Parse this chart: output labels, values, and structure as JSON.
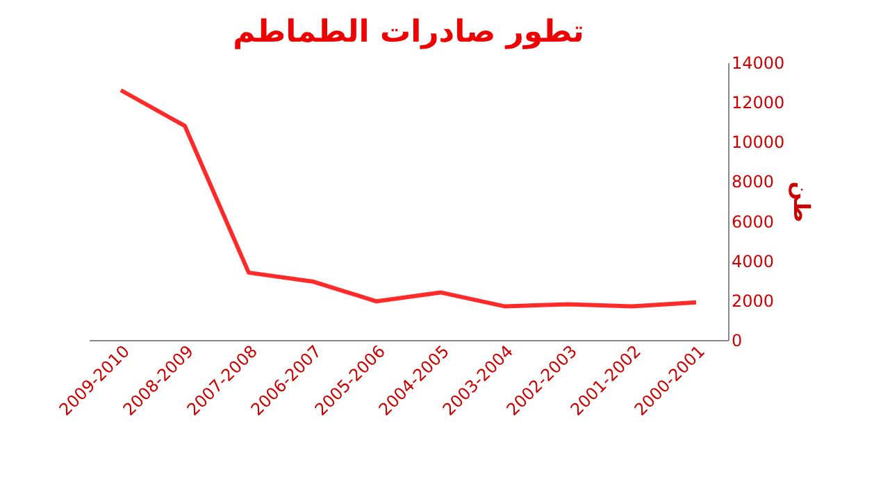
{
  "chart_data": {
    "type": "line",
    "title": "تطور صادرات الطماطم",
    "ylabel": "طن",
    "categories": [
      "2009-2010",
      "2008-2009",
      "2007-2008",
      "2006-2007",
      "2005-2006",
      "2004-2005",
      "2003-2004",
      "2002-2003",
      "2001-2002",
      "2000-2001"
    ],
    "series": [
      {
        "color": "#ff2a2a",
        "values": [
          12600,
          10800,
          3400,
          2950,
          1950,
          2400,
          1700,
          1800,
          1700,
          1900
        ]
      }
    ],
    "ylim": [
      0,
      14000
    ],
    "yticks": [
      0,
      2000,
      4000,
      6000,
      8000,
      10000,
      12000,
      14000
    ],
    "marker": "none",
    "line_style": "solid"
  }
}
